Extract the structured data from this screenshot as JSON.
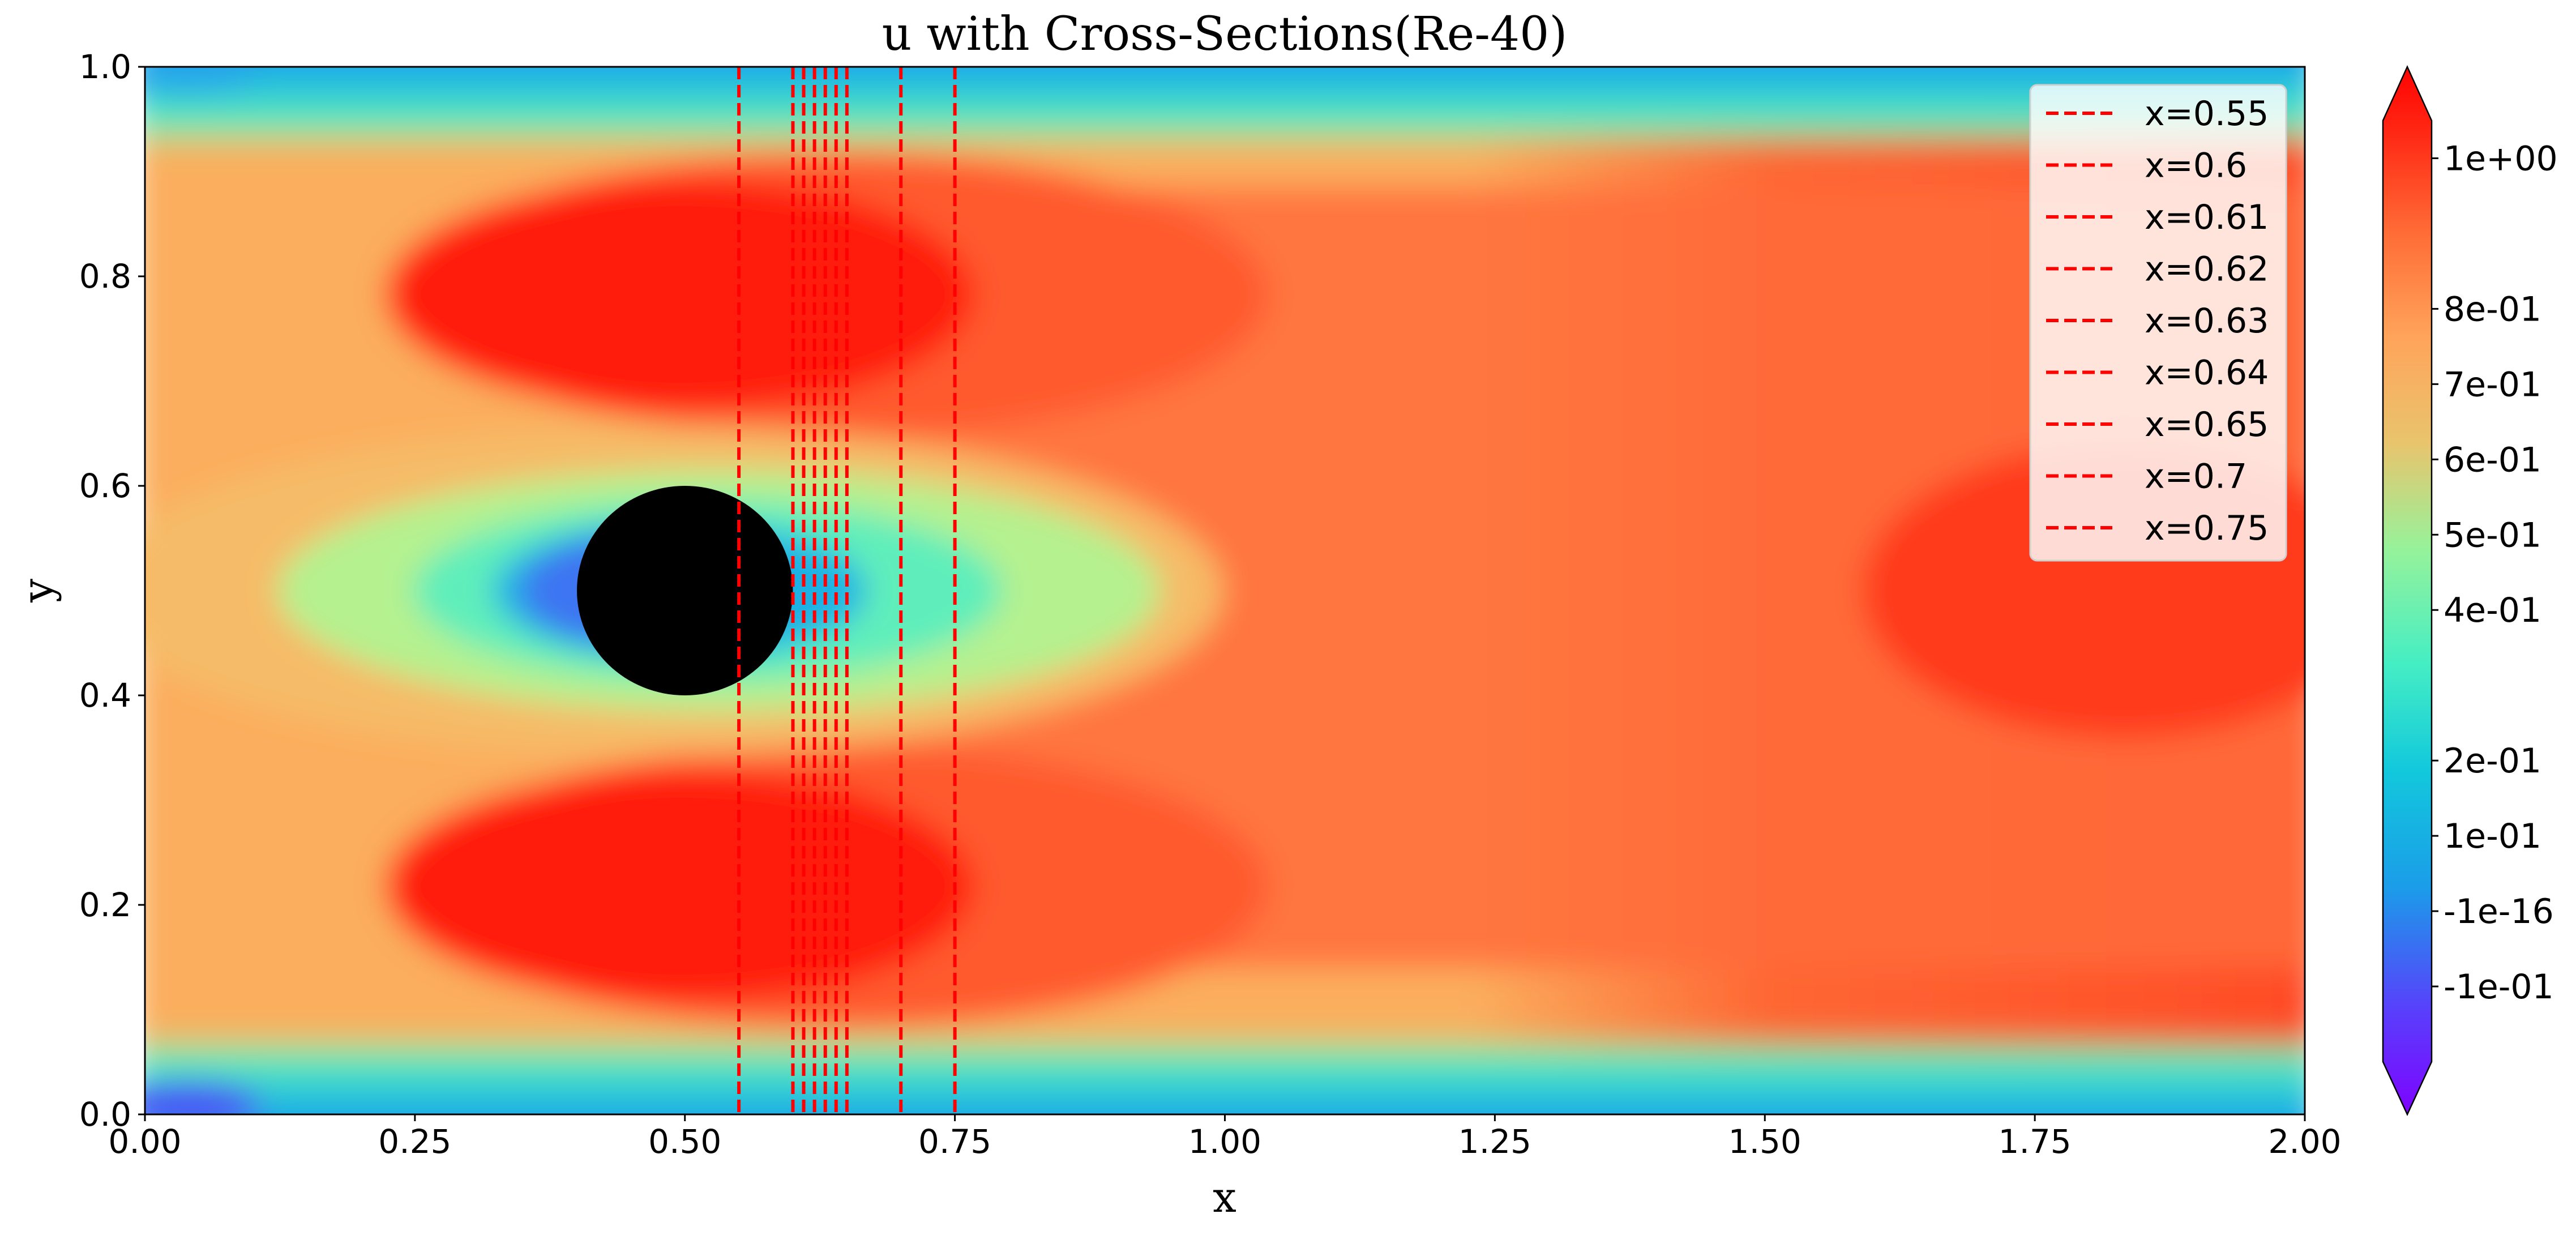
{
  "chart_data": {
    "type": "heatmap",
    "title": "u with Cross-Sections(Re-40)",
    "xlabel": "x",
    "ylabel": "y",
    "xlim": [
      0.0,
      2.0
    ],
    "ylim": [
      0.0,
      1.0
    ],
    "x_ticks": [
      0.0,
      0.25,
      0.5,
      0.75,
      1.0,
      1.25,
      1.5,
      1.75,
      2.0
    ],
    "x_tick_labels": [
      "0.00",
      "0.25",
      "0.50",
      "0.75",
      "1.00",
      "1.25",
      "1.50",
      "1.75",
      "2.00"
    ],
    "y_ticks": [
      0.0,
      0.2,
      0.4,
      0.6,
      0.8,
      1.0
    ],
    "y_tick_labels": [
      "0.0",
      "0.2",
      "0.4",
      "0.6",
      "0.8",
      "1.0"
    ],
    "colormap": "rainbow",
    "obstacle": {
      "shape": "circle",
      "center": [
        0.5,
        0.5
      ],
      "radius": 0.1,
      "color": "#000000"
    },
    "colorbar": {
      "ticks": [
        -0.1,
        0.0,
        0.1,
        0.2,
        0.4,
        0.5,
        0.6,
        0.7,
        0.8,
        1.0
      ],
      "tick_labels": [
        "-1e-01",
        "-1e-16",
        "1e-01",
        "2e-01",
        "4e-01",
        "5e-01",
        "6e-01",
        "7e-01",
        "8e-01",
        "1e+00"
      ],
      "range": [
        -0.2,
        1.05
      ],
      "extend": "both"
    },
    "legend": {
      "position": "top-right",
      "entries": [
        "x=0.55",
        "x=0.6",
        "x=0.61",
        "x=0.62",
        "x=0.63",
        "x=0.64",
        "x=0.65",
        "x=0.7",
        "x=0.75"
      ]
    },
    "cross_sections": {
      "x": [
        0.55,
        0.6,
        0.61,
        0.62,
        0.63,
        0.64,
        0.65,
        0.7,
        0.75
      ],
      "color": "#ff0000",
      "linestyle": "dashed"
    }
  }
}
